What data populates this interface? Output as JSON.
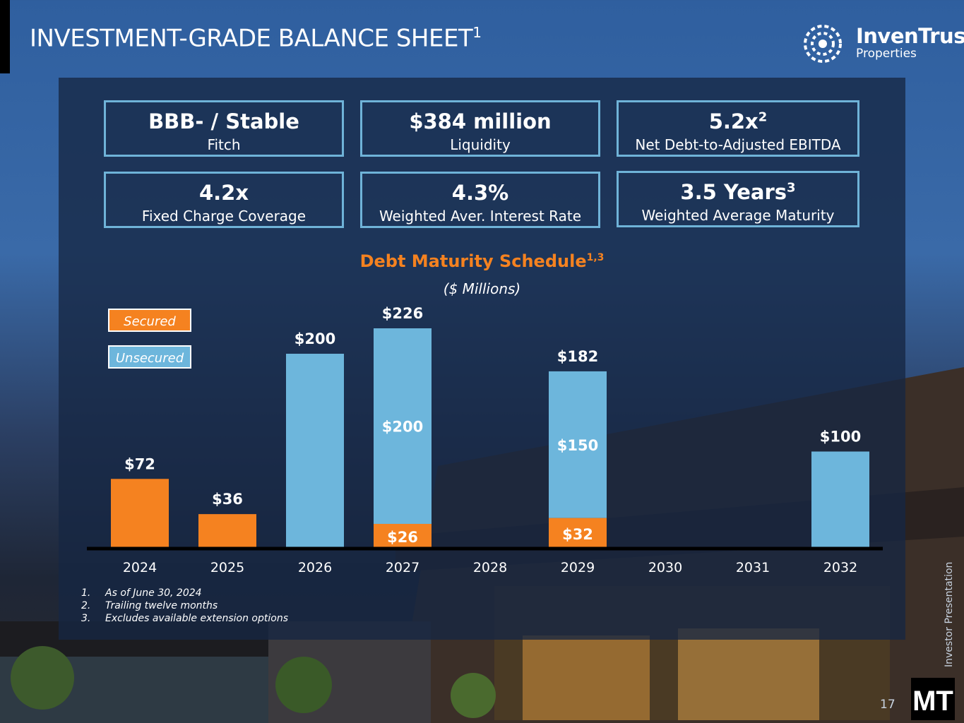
{
  "title": {
    "text": "INVESTMENT-GRADE BALANCE SHEET",
    "sup": "1"
  },
  "brand": {
    "name": "InvenTrust",
    "sub": "Properties",
    "badge": "MT"
  },
  "cards": [
    {
      "value": "BBB- / Stable",
      "sup": "",
      "label": "Fitch"
    },
    {
      "value": "$384 million",
      "sup": "",
      "label": "Liquidity"
    },
    {
      "value": "5.2x",
      "sup": "2",
      "label": "Net Debt-to-Adjusted EBITDA"
    },
    {
      "value": "4.2x",
      "sup": "",
      "label": "Fixed Charge Coverage"
    },
    {
      "value": "4.3%",
      "sup": "",
      "label": "Weighted Aver. Interest Rate"
    },
    {
      "value": "3.5 Years",
      "sup": "3",
      "label": "Weighted Average Maturity"
    }
  ],
  "legend": {
    "secured": "Secured",
    "unsecured": "Unsecured"
  },
  "chart_data": {
    "type": "bar",
    "stacked": true,
    "title": "Debt Maturity Schedule",
    "title_sup": "1,3",
    "subtitle": "($ Millions)",
    "categories": [
      "2024",
      "2025",
      "2026",
      "2027",
      "2028",
      "2029",
      "2030",
      "2031",
      "2032"
    ],
    "series": [
      {
        "name": "Secured",
        "values": [
          72,
          36,
          0,
          26,
          0,
          32,
          0,
          0,
          0
        ]
      },
      {
        "name": "Unsecured",
        "values": [
          0,
          0,
          200,
          200,
          0,
          150,
          0,
          0,
          100
        ]
      }
    ],
    "totals": [
      72,
      36,
      200,
      226,
      0,
      182,
      0,
      0,
      100
    ],
    "ylim": [
      0,
      230
    ],
    "value_labels": [
      {
        "category": "2024",
        "text": "$72",
        "kind": "total"
      },
      {
        "category": "2025",
        "text": "$36",
        "kind": "total"
      },
      {
        "category": "2026",
        "text": "$200",
        "kind": "total"
      },
      {
        "category": "2027",
        "text": "$226",
        "kind": "total"
      },
      {
        "category": "2027",
        "text": "$200",
        "kind": "unsecured"
      },
      {
        "category": "2027",
        "text": "$26",
        "kind": "secured"
      },
      {
        "category": "2029",
        "text": "$182",
        "kind": "total"
      },
      {
        "category": "2029",
        "text": "$150",
        "kind": "unsecured"
      },
      {
        "category": "2029",
        "text": "$32",
        "kind": "secured"
      },
      {
        "category": "2032",
        "text": "$100",
        "kind": "total"
      }
    ],
    "colors": {
      "secured": "#f58220",
      "unsecured": "#6db6dc"
    }
  },
  "footnotes": [
    {
      "num": "1.",
      "text": "As of June 30, 2024"
    },
    {
      "num": "2.",
      "text": "Trailing twelve months"
    },
    {
      "num": "3.",
      "text": "Excludes available extension options"
    }
  ],
  "side_label": "Investor Presentation",
  "page_number": "17"
}
